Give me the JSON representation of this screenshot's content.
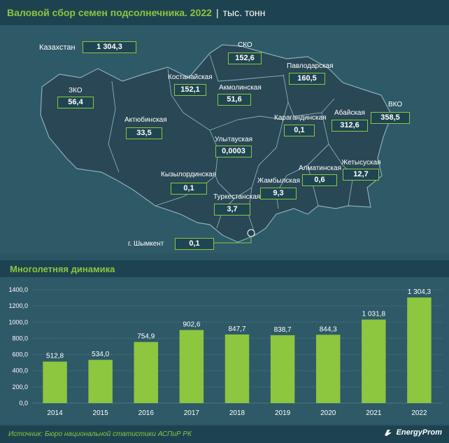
{
  "header": {
    "title": "Валовой сбор семен подсолнечника. 2022",
    "separator": "|",
    "unit": "тыс. тонн"
  },
  "map": {
    "total": {
      "label": "Казахстан",
      "value": "1 304,3"
    },
    "regions": [
      {
        "name": "СКО",
        "value": "152,6"
      },
      {
        "name": "Павлодарская",
        "value": "160,5"
      },
      {
        "name": "Костанайская",
        "value": "152,1"
      },
      {
        "name": "Акмолинская",
        "value": "51,6"
      },
      {
        "name": "ЗКО",
        "value": "56,4"
      },
      {
        "name": "ВКО",
        "value": "358,5"
      },
      {
        "name": "Абайская",
        "value": "312,6"
      },
      {
        "name": "Актюбинская",
        "value": "33,5"
      },
      {
        "name": "Карагандинская",
        "value": "0,1"
      },
      {
        "name": "Улытауская",
        "value": "0,0003"
      },
      {
        "name": "Кызылординская",
        "value": "0,1"
      },
      {
        "name": "Алматинская",
        "value": "0,6"
      },
      {
        "name": "Жетысуская",
        "value": "12,7"
      },
      {
        "name": "Жамбылская",
        "value": "9,3"
      },
      {
        "name": "Туркестанская",
        "value": "3,7"
      },
      {
        "name": "г. Шымкент",
        "value": "0,1"
      }
    ]
  },
  "chart_section": {
    "title": "Многолетняя динамика"
  },
  "chart_data": {
    "type": "bar",
    "categories": [
      "2014",
      "2015",
      "2016",
      "2017",
      "2018",
      "2019",
      "2020",
      "2021",
      "2022"
    ],
    "values": [
      512.8,
      534.0,
      754.9,
      902.6,
      847.7,
      838.7,
      844.3,
      1031.8,
      1304.3
    ],
    "value_labels": [
      "512,8",
      "534,0",
      "754,9",
      "902,6",
      "847,7",
      "838,7",
      "844,3",
      "1 031,8",
      "1 304,3"
    ],
    "yticks": [
      "0,0",
      "200,0",
      "400,0",
      "600,0",
      "800,0",
      "1000,0",
      "1200,0",
      "1400,0"
    ],
    "ylim": [
      0,
      1400
    ],
    "grid": true,
    "bar_color": "#8dc63f"
  },
  "footer": {
    "source": "Источник: Бюро национальной статистики АСПиР РК",
    "logo": "EnergyProm"
  }
}
